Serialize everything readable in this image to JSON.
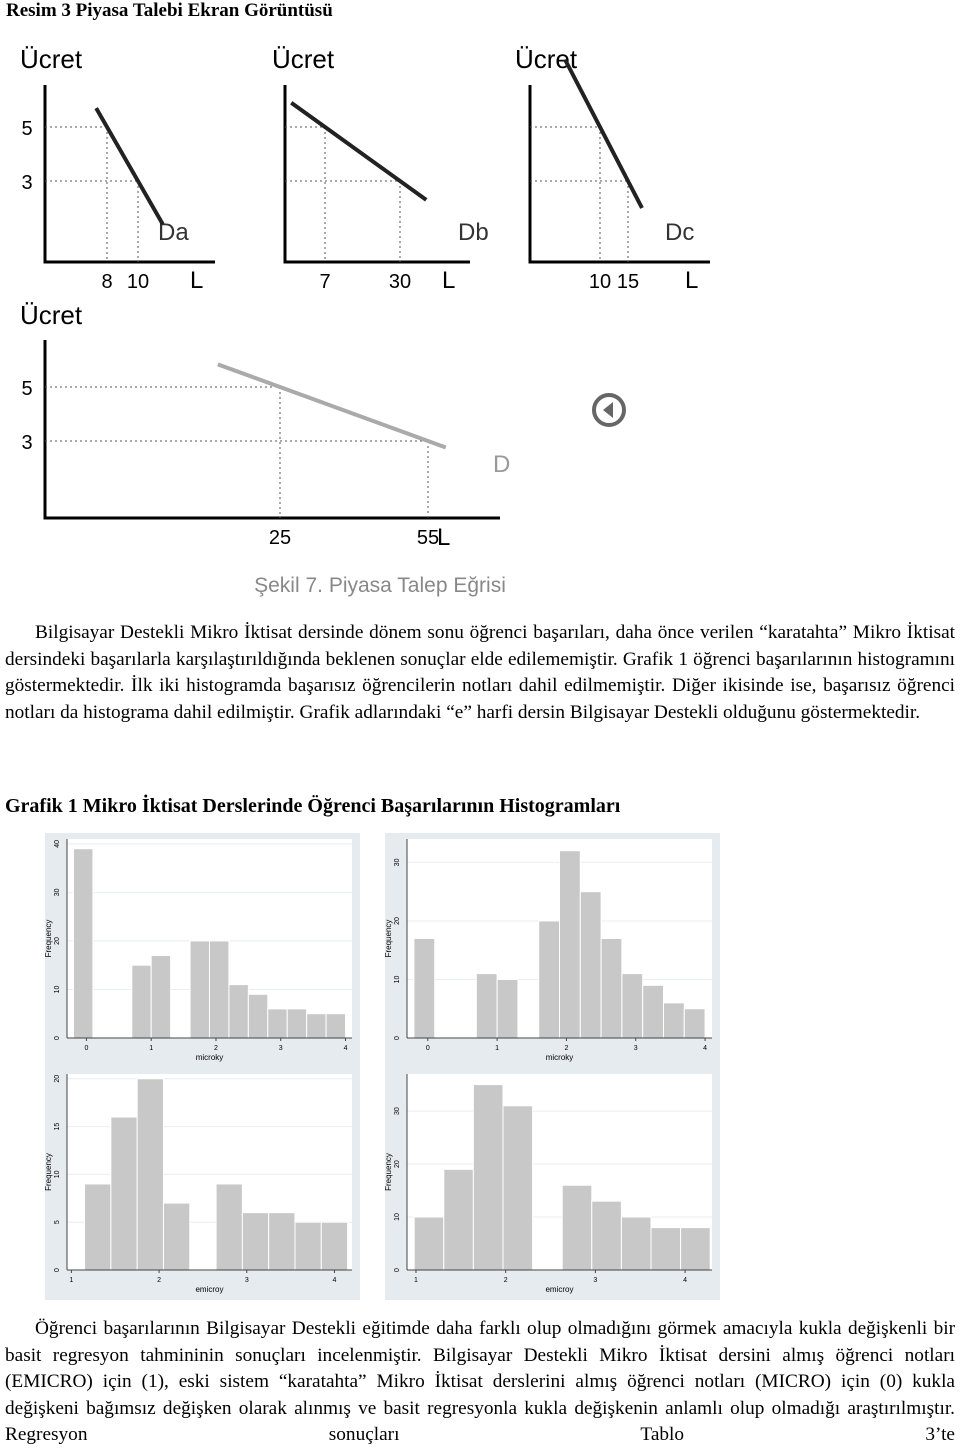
{
  "heading": "Resim 3 Piyasa Talebi Ekran Görüntüsü",
  "demand_figure": {
    "panels": [
      {
        "y_label": "Ücret",
        "yticks": [
          5,
          3
        ],
        "xticks": [
          8,
          10
        ],
        "curve_label": "Da",
        "x_label": "L"
      },
      {
        "y_label": "Ücret",
        "xticks": [
          7,
          30
        ],
        "curve_label": "Db",
        "x_label": "L"
      },
      {
        "y_label": "Ücret",
        "xticks": [
          10,
          15
        ],
        "curve_label": "Dc",
        "x_label": "L"
      },
      {
        "y_label": "Ücret",
        "yticks": [
          5,
          3
        ],
        "xticks": [
          25,
          55
        ],
        "curve_label": "D",
        "x_label": "L"
      }
    ],
    "caption": "Şekil 7. Piyasa Talep Eğrisi"
  },
  "paragraph_1": "Bilgisayar Destekli Mikro İktisat dersinde dönem sonu öğrenci başarıları, daha önce verilen “karatahta” Mikro İktisat dersindeki başarılarla karşılaştırıldığında beklenen sonuçlar elde edilememiştir. Grafik 1 öğrenci başarılarının histogramını göstermektedir. İlk iki histogramda başarısız öğrencilerin notları dahil edilmemiştir. Diğer ikisinde ise, başarısız öğrenci notları da histograma dahil edilmiştir. Grafik adlarındaki “e” harfi dersin Bilgisayar Destekli olduğunu göstermektedir.",
  "heading_2": "Grafik 1 Mikro İktisat Derslerinde Öğrenci Başarılarının Histogramları",
  "histograms": [
    {
      "x_label": "microky",
      "y_label": "Frequency",
      "xlim": [
        -0.3,
        4.1
      ],
      "ylim": [
        0,
        41
      ],
      "xticks": [
        0,
        1,
        2,
        3,
        4
      ],
      "yticks": [
        0,
        10,
        20,
        30,
        40
      ],
      "bins": [
        -0.2,
        0.1,
        0.4,
        0.7,
        1.0,
        1.3,
        1.6,
        1.9,
        2.2,
        2.5,
        2.8,
        3.1,
        3.4,
        3.7,
        4.0
      ],
      "counts": [
        39,
        0,
        0,
        15,
        17,
        0,
        20,
        20,
        11,
        9,
        6,
        6,
        5,
        5
      ]
    },
    {
      "x_label": "microky",
      "y_label": "Frequency",
      "xlim": [
        -0.3,
        4.1
      ],
      "ylim": [
        0,
        34
      ],
      "xticks": [
        0,
        1,
        2,
        3,
        4
      ],
      "yticks": [
        0,
        10,
        20,
        30
      ],
      "bins": [
        -0.2,
        0.1,
        0.4,
        0.7,
        1.0,
        1.3,
        1.6,
        1.9,
        2.2,
        2.5,
        2.8,
        3.1,
        3.4,
        3.7,
        4.0
      ],
      "counts": [
        17,
        0,
        0,
        11,
        10,
        0,
        20,
        32,
        25,
        17,
        11,
        9,
        6,
        5
      ]
    },
    {
      "x_label": "emicroy",
      "y_label": "Frequency",
      "xlim": [
        0.95,
        4.2
      ],
      "ylim": [
        0,
        20.5
      ],
      "xticks": [
        1,
        2,
        3,
        4
      ],
      "yticks": [
        0,
        5,
        10,
        15,
        20
      ],
      "bins": [
        1.15,
        1.45,
        1.75,
        2.05,
        2.35,
        2.65,
        2.95,
        3.25,
        3.55,
        3.85,
        4.15
      ],
      "counts": [
        9,
        16,
        20,
        7,
        0,
        9,
        6,
        6,
        5,
        5
      ]
    },
    {
      "x_label": "emicroy",
      "y_label": "Frequency",
      "xlim": [
        0.9,
        4.3
      ],
      "ylim": [
        0,
        37
      ],
      "xticks": [
        1,
        2,
        3,
        4
      ],
      "yticks": [
        0,
        10,
        20,
        30
      ],
      "bins": [
        0.98,
        1.31,
        1.64,
        1.97,
        2.3,
        2.63,
        2.96,
        3.29,
        3.62,
        3.95,
        4.28
      ],
      "counts": [
        10,
        19,
        35,
        31,
        0,
        16,
        13,
        10,
        8,
        8
      ]
    }
  ],
  "paragraph_2": "Öğrenci başarılarının Bilgisayar Destekli eğitimde daha farklı olup olmadığını görmek amacıyla kukla değişkenli bir basit regresyon tahmininin sonuçları incelenmiştir. Bilgisayar Destekli Mikro İktisat dersini almış öğrenci notları (EMICRO) için (1), eski sistem “karatahta” Mikro İktisat derslerini almış öğrenci notları (MICRO) için (0) kukla değişkeni bağımsız değişken olarak alınmış ve basit regresyonla kukla değişkenin anlamlı olup olmadığı araştırılmıştır. Regresyon sonuçları Tablo 3’te"
}
